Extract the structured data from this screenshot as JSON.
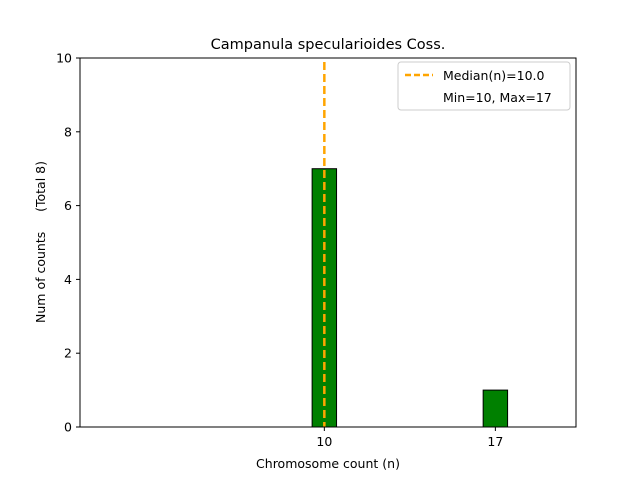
{
  "chart_data": {
    "type": "bar",
    "title": "Campanula specularioides Coss.",
    "xlabel": "Chromosome count (n)",
    "ylabel": "Num of counts     (Total 8)",
    "xlim": [
      0,
      20.3
    ],
    "ylim": [
      0,
      10
    ],
    "bar_width": 1,
    "categories": [
      "10",
      "17"
    ],
    "x": [
      10,
      17
    ],
    "values": [
      7,
      1
    ],
    "xticks": [
      10,
      17
    ],
    "yticks": [
      0,
      2,
      4,
      6,
      8,
      10
    ],
    "median": 10.0,
    "min": 10,
    "max": 17,
    "legend": {
      "position": "top-right",
      "entries": [
        "Median(n)=10.0",
        "Min=10, Max=17"
      ]
    },
    "colors": {
      "bar": "#008000",
      "bar_edge": "#000000",
      "median_line": "#FFA500"
    },
    "grid": false
  }
}
